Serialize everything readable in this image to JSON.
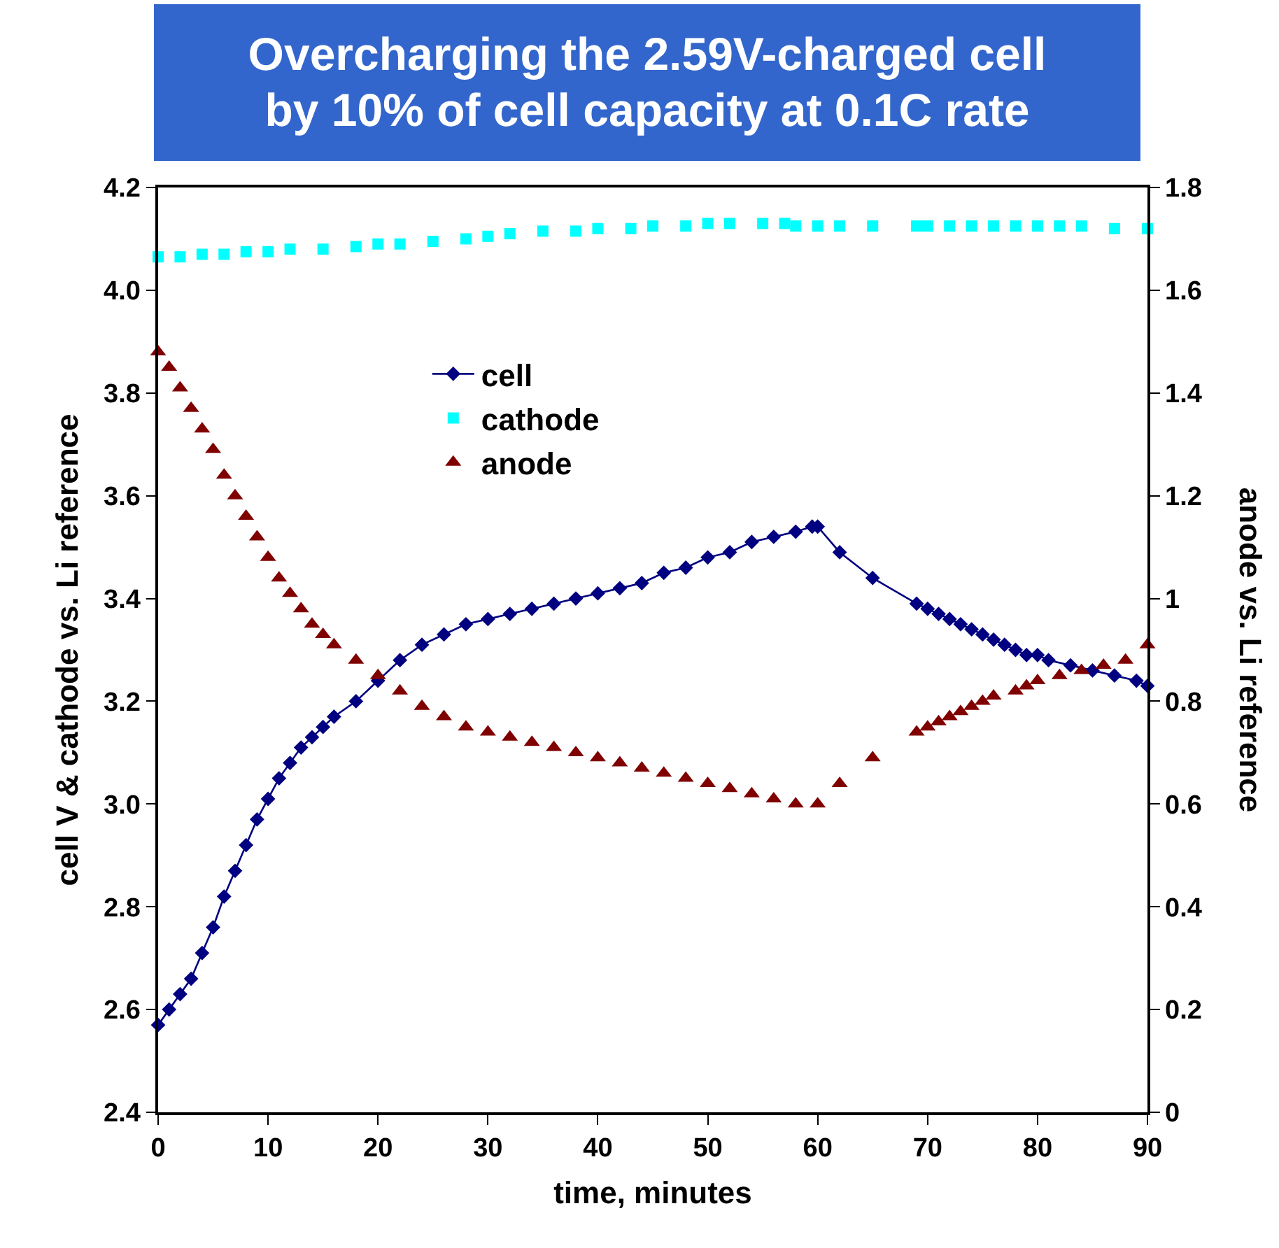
{
  "chart_data": {
    "type": "line",
    "title": "Overcharging the 2.59V-charged cell\nby 10% of cell capacity at 0.1C rate",
    "xlabel": "time, minutes",
    "ylabel": "cell V & cathode vs. Li reference",
    "y2label": "anode vs. Li reference",
    "xlim": [
      0,
      90
    ],
    "xticks": [
      0,
      10,
      20,
      30,
      40,
      50,
      60,
      70,
      80,
      90
    ],
    "ylim": [
      2.4,
      4.2
    ],
    "yticks": [
      2.4,
      2.6,
      2.8,
      {
        "value": 3,
        "label": "3.0"
      },
      3.2,
      3.4,
      3.6,
      3.8,
      {
        "value": 4,
        "label": "4.0"
      },
      4.2
    ],
    "y2lim": [
      0,
      1.8
    ],
    "y2ticks": [
      0,
      0.2,
      0.4,
      0.6,
      0.8,
      1,
      1.2,
      1.4,
      1.6,
      1.8
    ],
    "grid": false,
    "legend": "top center",
    "series": [
      {
        "name": "cell",
        "type": "line",
        "color": "#000080",
        "marker": "diamond",
        "line_style": "solid",
        "x": [
          0,
          1,
          2,
          3,
          4,
          5,
          6,
          7,
          8,
          9,
          10,
          11,
          12,
          13,
          14,
          15,
          16,
          18,
          20,
          22,
          24,
          26,
          28,
          30,
          32,
          34,
          36,
          38,
          40,
          42,
          44,
          46,
          48,
          50,
          52,
          54,
          56,
          58,
          59.5,
          60,
          62,
          65,
          69,
          70,
          71,
          72,
          73,
          74,
          75,
          76,
          77,
          78,
          79,
          80,
          81,
          83,
          85,
          87,
          89,
          90
        ],
        "values": [
          2.57,
          2.6,
          2.63,
          2.66,
          2.71,
          2.76,
          2.82,
          2.87,
          2.92,
          2.97,
          3.01,
          3.05,
          3.08,
          3.11,
          3.13,
          3.15,
          3.17,
          3.2,
          3.24,
          3.28,
          3.31,
          3.33,
          3.35,
          3.36,
          3.37,
          3.38,
          3.39,
          3.4,
          3.41,
          3.42,
          3.43,
          3.45,
          3.46,
          3.48,
          3.49,
          3.51,
          3.52,
          3.53,
          3.54,
          3.54,
          3.49,
          3.44,
          3.39,
          3.38,
          3.37,
          3.36,
          3.35,
          3.34,
          3.33,
          3.32,
          3.31,
          3.3,
          3.29,
          3.29,
          3.28,
          3.27,
          3.26,
          3.25,
          3.24,
          3.23
        ]
      },
      {
        "name": "cathode",
        "type": "scatter",
        "color": "#00ffff",
        "marker": "square",
        "x": [
          0,
          2,
          4,
          6,
          8,
          10,
          12,
          15,
          18,
          20,
          22,
          25,
          28,
          30,
          32,
          35,
          38,
          40,
          43,
          45,
          48,
          50,
          52,
          55,
          57,
          58,
          60,
          62,
          65,
          69,
          70,
          72,
          74,
          76,
          78,
          80,
          82,
          84,
          87,
          90
        ],
        "values": [
          4.065,
          4.065,
          4.07,
          4.07,
          4.075,
          4.075,
          4.08,
          4.08,
          4.085,
          4.09,
          4.09,
          4.095,
          4.1,
          4.105,
          4.11,
          4.115,
          4.115,
          4.12,
          4.12,
          4.125,
          4.125,
          4.13,
          4.13,
          4.13,
          4.13,
          4.125,
          4.125,
          4.125,
          4.125,
          4.125,
          4.125,
          4.125,
          4.125,
          4.125,
          4.125,
          4.125,
          4.125,
          4.125,
          4.12,
          4.12
        ]
      },
      {
        "name": "anode",
        "type": "scatter",
        "axis": "y2",
        "color": "#800000",
        "marker": "triangle",
        "x": [
          0,
          1,
          2,
          3,
          4,
          5,
          6,
          7,
          8,
          9,
          10,
          11,
          12,
          13,
          14,
          15,
          16,
          18,
          20,
          22,
          24,
          26,
          28,
          30,
          32,
          34,
          36,
          38,
          40,
          42,
          44,
          46,
          48,
          50,
          52,
          54,
          56,
          58,
          60,
          62,
          65,
          69,
          70,
          71,
          72,
          73,
          74,
          75,
          76,
          78,
          79,
          80,
          82,
          84,
          86,
          88,
          90
        ],
        "values": [
          1.48,
          1.45,
          1.41,
          1.37,
          1.33,
          1.29,
          1.24,
          1.2,
          1.16,
          1.12,
          1.08,
          1.04,
          1.01,
          0.98,
          0.95,
          0.93,
          0.91,
          0.88,
          0.85,
          0.82,
          0.79,
          0.77,
          0.75,
          0.74,
          0.73,
          0.72,
          0.71,
          0.7,
          0.69,
          0.68,
          0.67,
          0.66,
          0.65,
          0.64,
          0.63,
          0.62,
          0.61,
          0.6,
          0.6,
          0.64,
          0.69,
          0.74,
          0.75,
          0.76,
          0.77,
          0.78,
          0.79,
          0.8,
          0.81,
          0.82,
          0.83,
          0.84,
          0.85,
          0.86,
          0.87,
          0.88,
          0.91
        ]
      }
    ]
  }
}
